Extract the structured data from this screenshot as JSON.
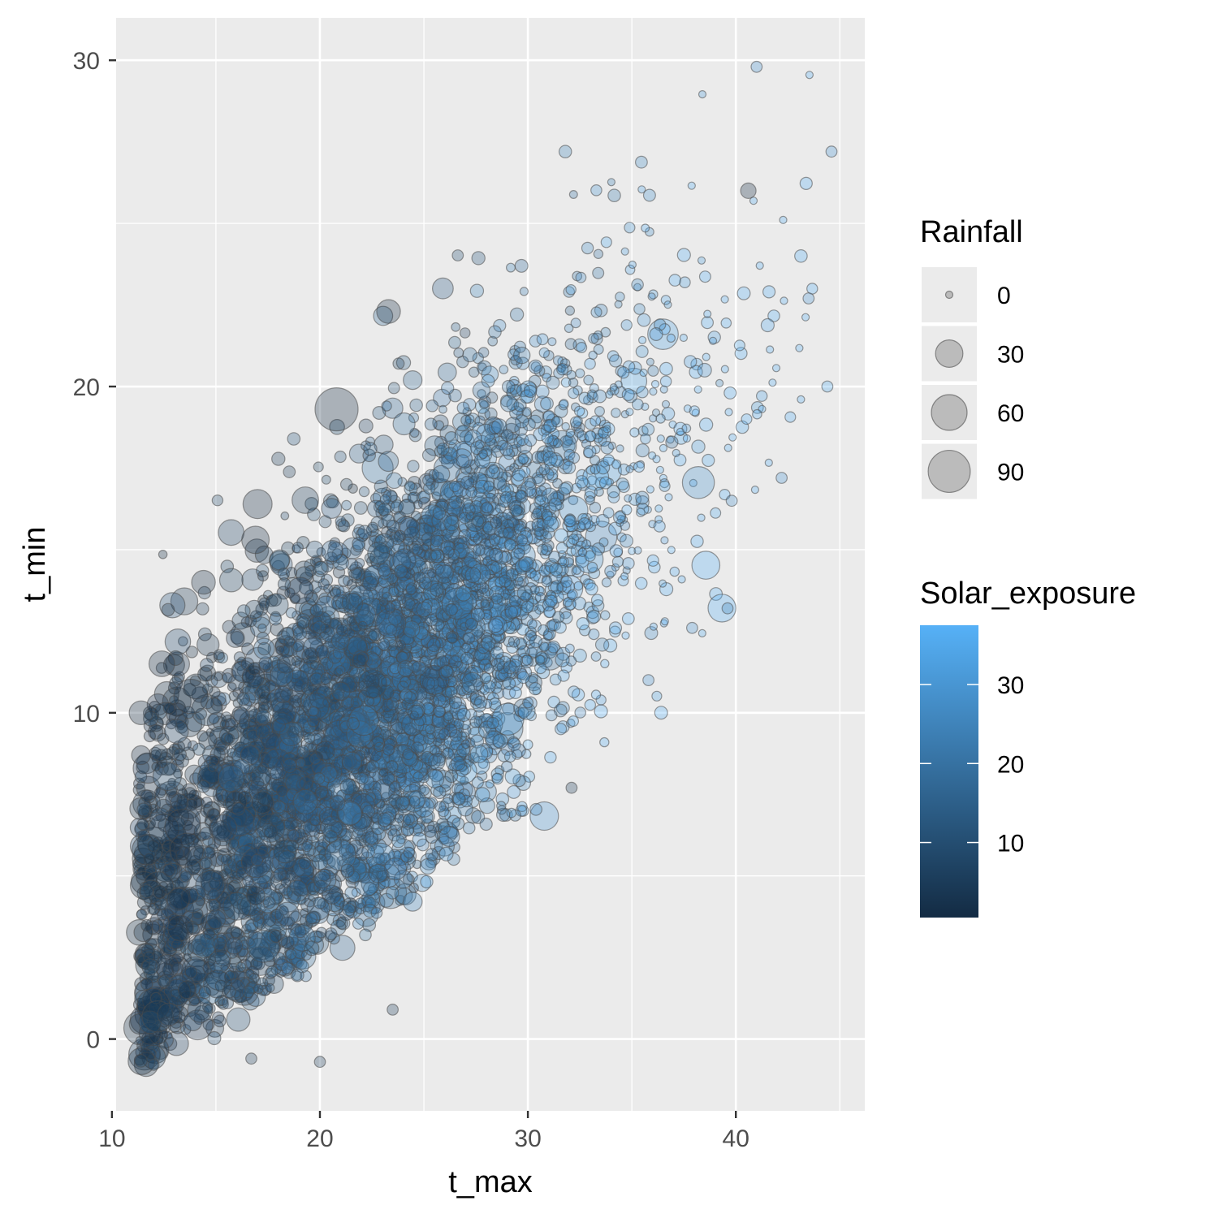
{
  "chart_data": {
    "type": "scatter",
    "title": "",
    "xlabel": "t_max",
    "ylabel": "t_min",
    "xlim": [
      10.2,
      46.2
    ],
    "ylim": [
      -2.2,
      31.3
    ],
    "x_ticks": [
      10,
      20,
      30,
      40
    ],
    "y_ticks": [
      0,
      10,
      20,
      30
    ],
    "grid": true,
    "legend_position": "right",
    "size_legend": {
      "title": "Rainfall",
      "entries": [
        {
          "label": "0",
          "value": 0
        },
        {
          "label": "30",
          "value": 30
        },
        {
          "label": "60",
          "value": 60
        },
        {
          "label": "90",
          "value": 90
        }
      ]
    },
    "color_legend": {
      "title": "Solar_exposure",
      "min": 0.5,
      "max": 37.5,
      "ticks": [
        10,
        20,
        30
      ],
      "low_color": "#132B43",
      "high_color": "#56B1F7"
    },
    "point_style": {
      "fill_opacity": 0.3,
      "stroke": "#4d4d4d",
      "na_color": "#8c8c8c"
    },
    "points": [
      [
        20.8,
        19.3,
        0,
        95
      ],
      [
        13.8,
        10.5,
        0,
        55
      ],
      [
        13.4,
        6.5,
        0,
        60
      ],
      [
        13.6,
        5.8,
        0,
        50
      ],
      [
        11.4,
        10.0,
        0,
        20
      ],
      [
        11.4,
        8.7,
        0,
        10
      ],
      [
        12.4,
        11.5,
        0,
        25
      ],
      [
        13.3,
        3.4,
        0,
        25
      ],
      [
        23.3,
        22.3,
        0,
        20
      ],
      [
        17.0,
        16.4,
        0,
        35
      ],
      [
        16.9,
        15.3,
        0,
        30
      ],
      [
        14.4,
        14.0,
        0,
        20
      ],
      [
        31.8,
        27.2,
        25,
        2
      ],
      [
        41.0,
        29.8,
        30,
        1
      ],
      [
        44.6,
        27.2,
        30,
        1
      ],
      [
        40.6,
        26.0,
        0,
        5
      ],
      [
        44.4,
        20.0,
        35,
        1
      ],
      [
        43.5,
        22.7,
        30,
        1
      ],
      [
        38.5,
        20.5,
        30,
        3
      ],
      [
        39.6,
        13.2,
        25,
        1
      ],
      [
        32.1,
        7.7,
        5,
        1
      ],
      [
        20.0,
        -0.7,
        5,
        1
      ],
      [
        16.7,
        -0.6,
        5,
        1
      ],
      [
        23.5,
        0.9,
        5,
        1
      ],
      [
        35.8,
        11.0,
        30,
        1
      ],
      [
        37.9,
        12.6,
        30,
        1
      ],
      [
        39.8,
        16.5,
        28,
        1
      ],
      [
        42.2,
        17.2,
        30,
        1
      ]
    ]
  }
}
